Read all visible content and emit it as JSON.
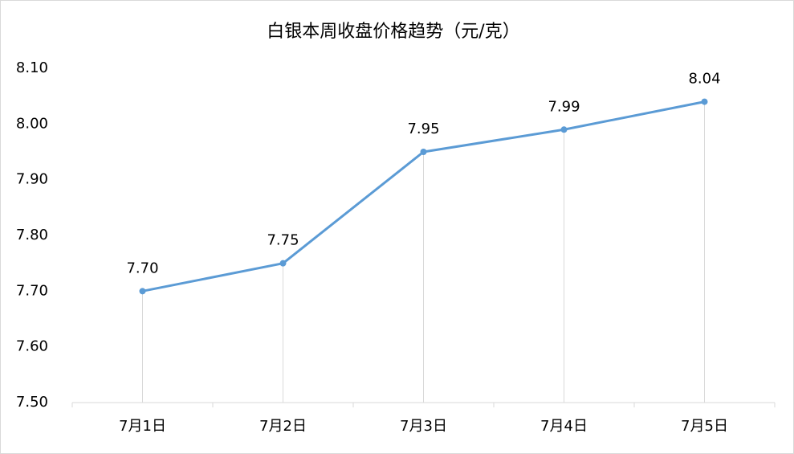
{
  "chart_data": {
    "type": "line",
    "title": "白银本周收盘价格趋势（元/克）",
    "categories": [
      "7月1日",
      "7月2日",
      "7月3日",
      "7月4日",
      "7月5日"
    ],
    "series": [
      {
        "values": [
          7.7,
          7.75,
          7.95,
          7.99,
          8.04
        ],
        "value_labels": [
          "7.70",
          "7.75",
          "7.95",
          "7.99",
          "8.04"
        ],
        "color": "#5b9bd5"
      }
    ],
    "ylim": [
      7.5,
      8.1
    ],
    "yticks": [
      {
        "value": 7.5,
        "label": "7.50"
      },
      {
        "value": 7.6,
        "label": "7.60"
      },
      {
        "value": 7.7,
        "label": "7.70"
      },
      {
        "value": 7.8,
        "label": "7.80"
      },
      {
        "value": 7.9,
        "label": "7.90"
      },
      {
        "value": 8.0,
        "label": "8.00"
      },
      {
        "value": 8.1,
        "label": "8.10"
      }
    ],
    "drop_lines": true
  }
}
